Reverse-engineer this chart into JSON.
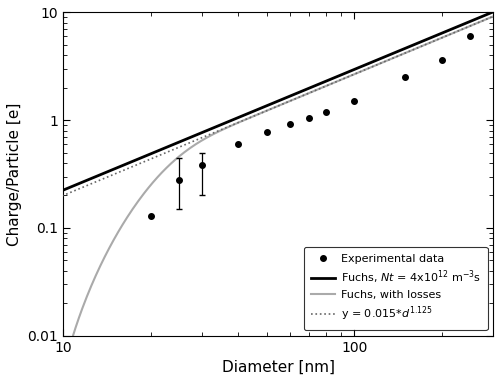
{
  "title": "",
  "xlabel": "Diameter [nm]",
  "ylabel": "Charge/Particle [e]",
  "xlim": [
    10,
    300
  ],
  "ylim": [
    0.01,
    10
  ],
  "experimental_d": [
    20,
    25,
    30,
    40,
    50,
    60,
    70,
    80,
    100,
    150,
    200,
    250
  ],
  "experimental_q": [
    0.13,
    0.28,
    0.38,
    0.6,
    0.78,
    0.92,
    1.05,
    1.18,
    1.5,
    2.5,
    3.6,
    6.0
  ],
  "experimental_yerr_low": [
    0.0,
    0.13,
    0.18,
    0.0,
    0.0,
    0.0,
    0.0,
    0.0,
    0.0,
    0.0,
    0.0,
    0.0
  ],
  "experimental_yerr_high": [
    0.0,
    0.17,
    0.12,
    0.0,
    0.0,
    0.0,
    0.0,
    0.0,
    0.0,
    0.0,
    0.0,
    0.0
  ],
  "fuchs_nt_color": "#000000",
  "fuchs_losses_color": "#aaaaaa",
  "powerlaw_color": "#666666",
  "powerlaw_coeff": 0.015,
  "powerlaw_exp": 1.125,
  "legend_loc": "lower right",
  "figsize": [
    5.0,
    3.82
  ],
  "dpi": 100
}
